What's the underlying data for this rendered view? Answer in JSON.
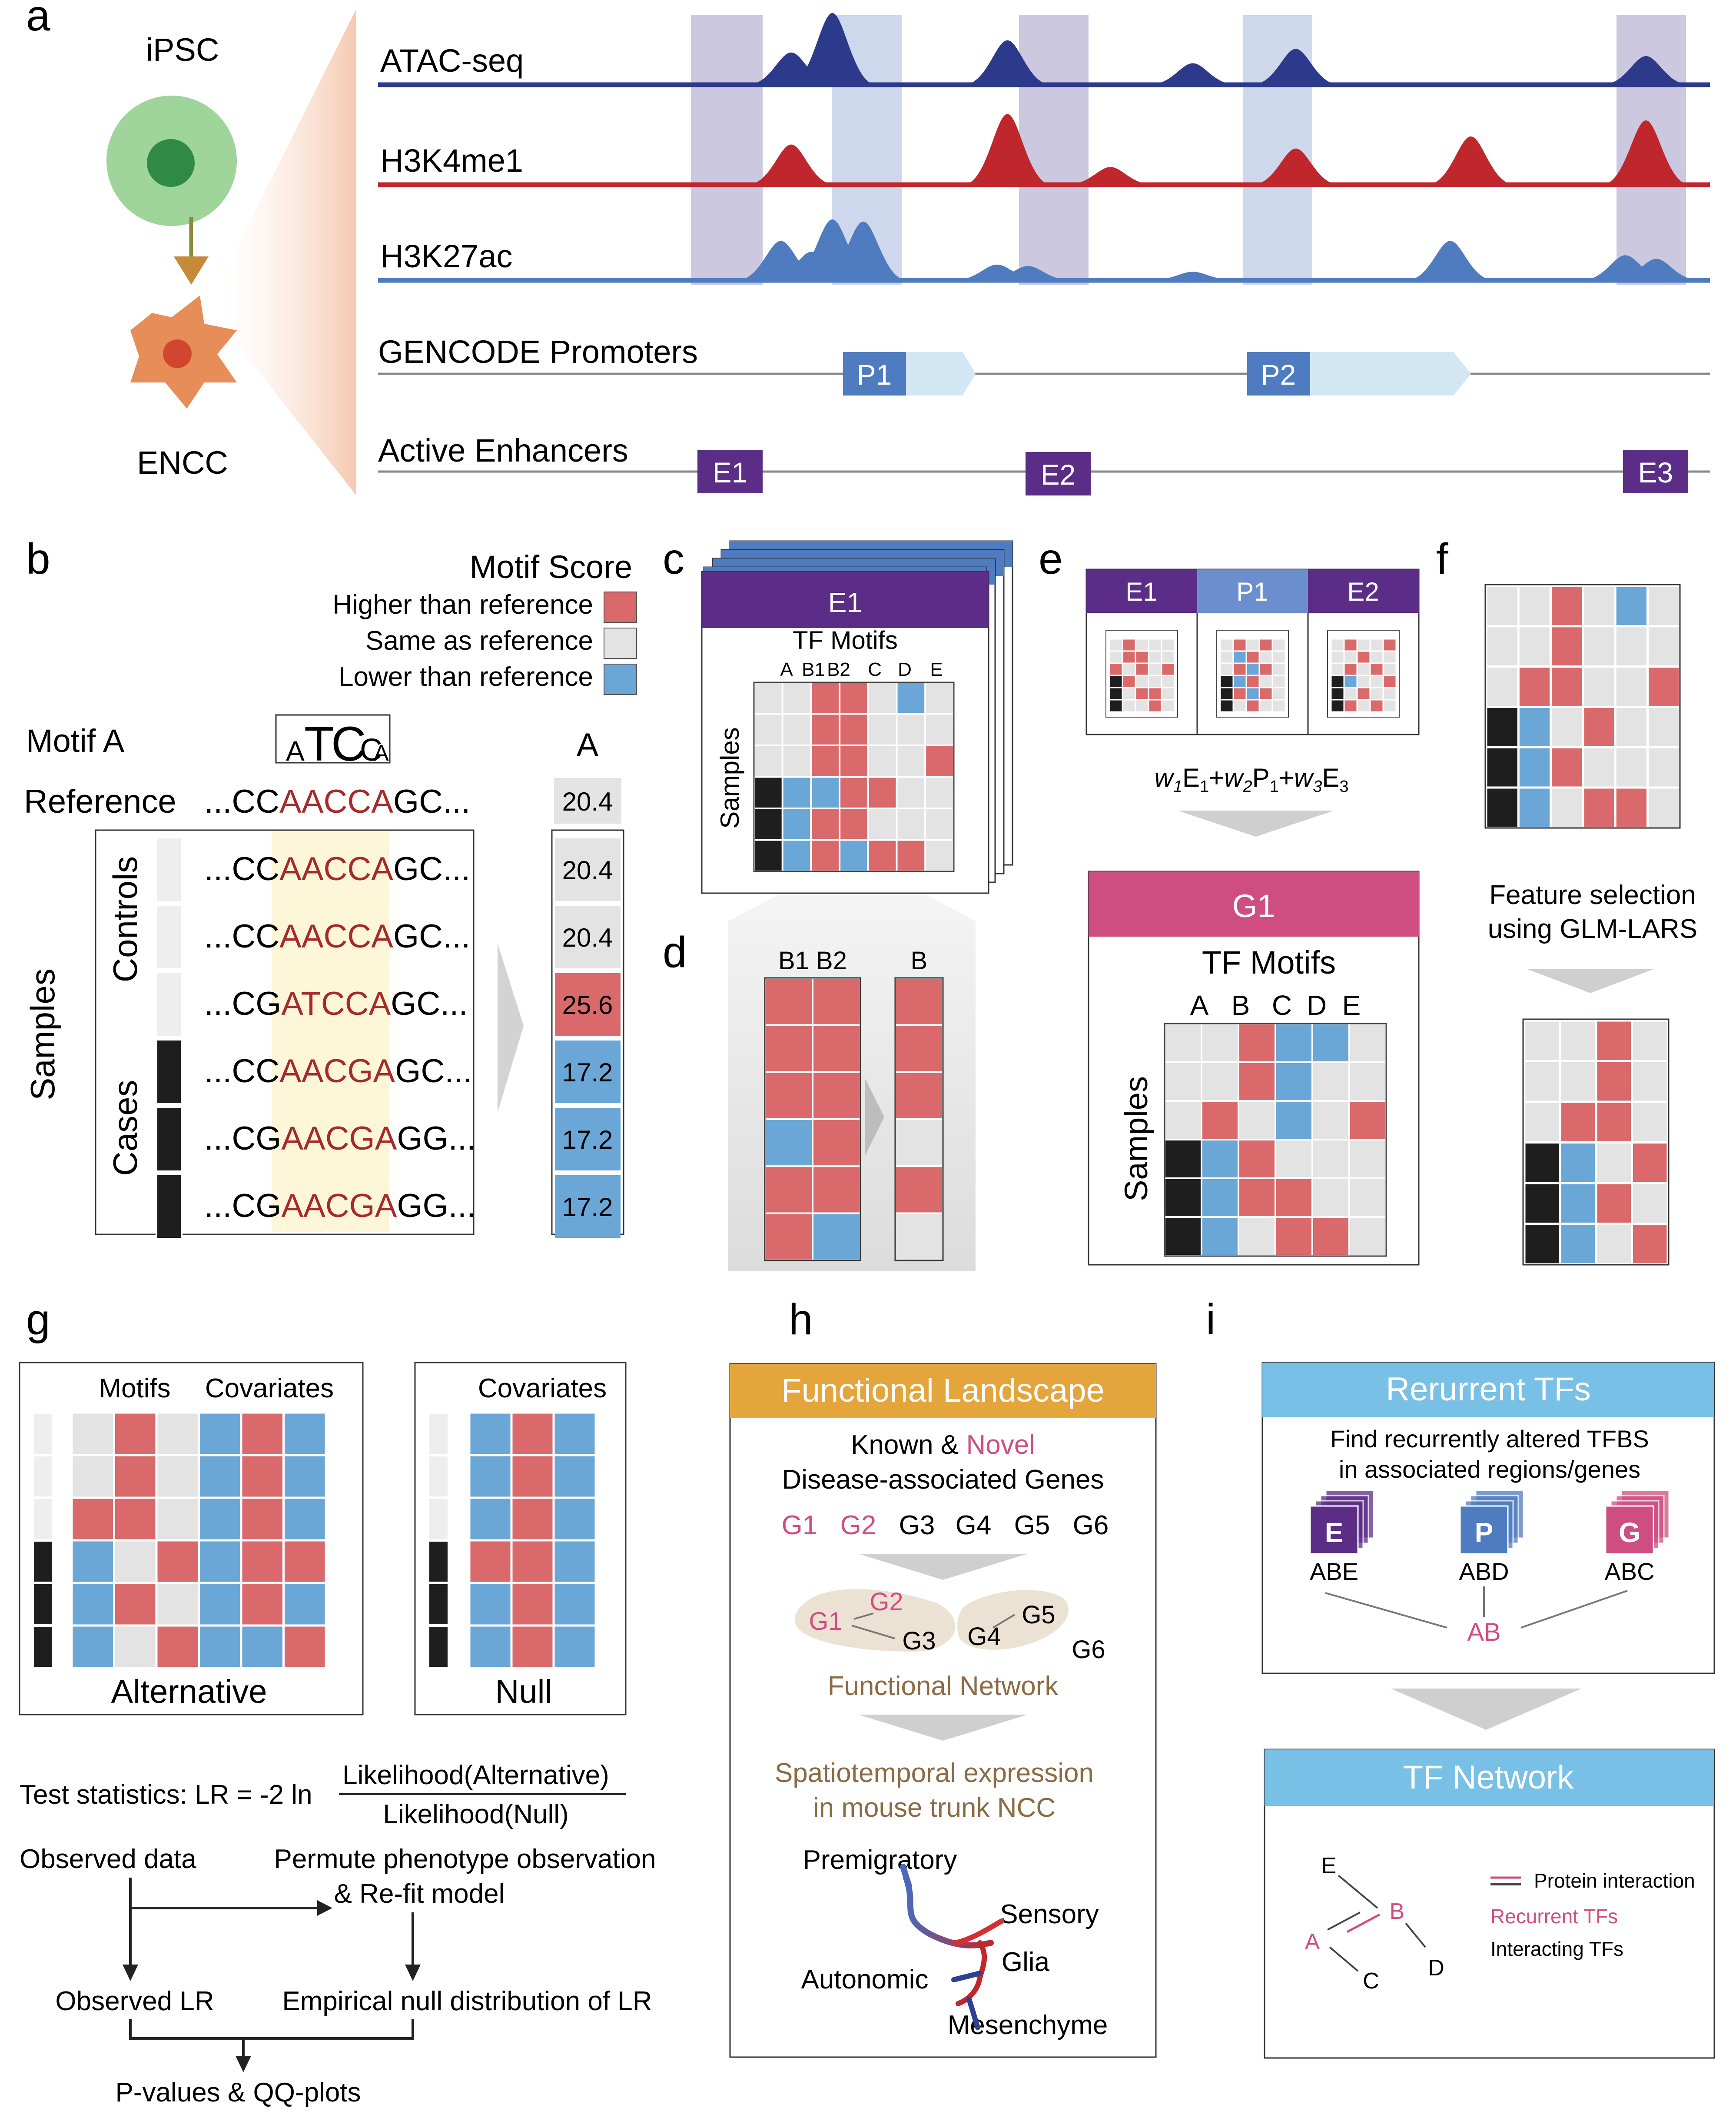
{
  "colors": {
    "red": "#d9696b",
    "blue": "#6aa6d6",
    "gray": "#e3e3e3",
    "purple": "#5b2d86",
    "steel": "#4f7cc0",
    "pink": "#cf4e82",
    "orange": "#e3a53c",
    "sky": "#79c0e6",
    "navy": "#2d3a8c",
    "crimson": "#c0272d",
    "brown": "#8c6a44"
  },
  "panel_letters": [
    "a",
    "b",
    "c",
    "d",
    "e",
    "f",
    "g",
    "h",
    "i"
  ],
  "a": {
    "cell_top": "iPSC",
    "cell_bottom": "ENCC",
    "tracks": [
      {
        "label": "ATAC-seq",
        "color": "#2d3a8c",
        "peaks": [
          [
            0.11,
            0.45
          ],
          [
            0.15,
            1.0
          ],
          [
            0.32,
            0.62
          ],
          [
            0.5,
            0.3
          ],
          [
            0.6,
            0.5
          ],
          [
            0.94,
            0.4
          ]
        ]
      },
      {
        "label": "H3K4me1",
        "color": "#c0272d",
        "peaks": [
          [
            0.11,
            0.5
          ],
          [
            0.32,
            0.88
          ],
          [
            0.42,
            0.22
          ],
          [
            0.6,
            0.45
          ],
          [
            0.77,
            0.6
          ],
          [
            0.94,
            0.8
          ]
        ]
      },
      {
        "label": "H3K27ac",
        "color": "#4f7cc0",
        "peaks": [
          [
            0.1,
            0.55
          ],
          [
            0.13,
            0.4
          ],
          [
            0.15,
            0.85
          ],
          [
            0.18,
            0.82
          ],
          [
            0.31,
            0.22
          ],
          [
            0.34,
            0.2
          ],
          [
            0.5,
            0.12
          ],
          [
            0.75,
            0.55
          ],
          [
            0.92,
            0.35
          ],
          [
            0.95,
            0.3
          ]
        ]
      }
    ],
    "promoters_label": "GENCODE Promoters",
    "promoters": [
      "P1",
      "P2"
    ],
    "enhancers_label": "Active Enhancers",
    "enhancers": [
      "E1",
      "E2",
      "E3"
    ]
  },
  "b": {
    "legend_title": "Motif Score",
    "legend": [
      "Higher than reference",
      "Same as reference",
      "Lower than reference"
    ],
    "motif_name": "Motif A",
    "motif_logo": [
      "A",
      "T",
      "C",
      "C",
      "A"
    ],
    "reference_label": "Reference",
    "reference_seq": {
      "pre": "...CC",
      "motif": "AACCA",
      "post": "GC..."
    },
    "column_header": "A",
    "reference_score": "20.4",
    "samples_label": "Samples",
    "controls_label": "Controls",
    "cases_label": "Cases",
    "rows": [
      {
        "pre": "...CC",
        "motif": "AACCA",
        "post": "GC...",
        "score": "20.4",
        "state": "gray"
      },
      {
        "pre": "...CC",
        "motif": "AACCA",
        "post": "GC...",
        "score": "20.4",
        "state": "gray"
      },
      {
        "pre": "...CG",
        "motif": "ATCCA",
        "post": "GC...",
        "score": "25.6",
        "state": "red"
      },
      {
        "pre": "...CC",
        "motif": "AACGA",
        "post": "GC...",
        "score": "17.2",
        "state": "blue"
      },
      {
        "pre": "...CG",
        "motif": "AACGA",
        "post": "GG...",
        "score": "17.2",
        "state": "blue"
      },
      {
        "pre": "...CG",
        "motif": "AACGA",
        "post": "GG...",
        "score": "17.2",
        "state": "blue"
      }
    ]
  },
  "c": {
    "header": "E1",
    "subtitle": "TF Motifs",
    "columns": [
      "A",
      "B1",
      "B2",
      "C",
      "D",
      "E"
    ],
    "samples_label": "Samples",
    "grid": [
      [
        "g",
        "g",
        "r",
        "r",
        "g",
        "b",
        "g"
      ],
      [
        "g",
        "g",
        "r",
        "r",
        "g",
        "g",
        "g"
      ],
      [
        "g",
        "g",
        "r",
        "r",
        "g",
        "g",
        "r"
      ],
      [
        "k",
        "b",
        "b",
        "r",
        "r",
        "g",
        "g"
      ],
      [
        "k",
        "b",
        "r",
        "r",
        "g",
        "g",
        "g"
      ],
      [
        "k",
        "b",
        "r",
        "b",
        "r",
        "r",
        "g"
      ]
    ]
  },
  "d": {
    "left_header": "B1 B2",
    "right_header": "B",
    "left": [
      [
        "r",
        "r"
      ],
      [
        "r",
        "r"
      ],
      [
        "r",
        "r"
      ],
      [
        "b",
        "r"
      ],
      [
        "r",
        "r"
      ],
      [
        "r",
        "b"
      ]
    ],
    "right": [
      "r",
      "r",
      "r",
      "g",
      "r",
      "g"
    ]
  },
  "e": {
    "headers": [
      "E1",
      "P1",
      "E2"
    ],
    "equation": {
      "w1": "w",
      "s1": "1",
      "E1": "E",
      "e1": "1",
      "plus1": "+",
      "w2": "w",
      "s2": "2",
      "P1": "P",
      "p1": "1",
      "plus2": "+",
      "w3": "w",
      "s3": "3",
      "E3": "E",
      "e3": "3"
    },
    "result_header": "G1",
    "result_subtitle": "TF Motifs",
    "columns": [
      "A",
      "B",
      "C",
      "D",
      "E"
    ],
    "samples_label": "Samples",
    "grid": [
      [
        "g",
        "g",
        "r",
        "b",
        "b",
        "g"
      ],
      [
        "g",
        "g",
        "r",
        "b",
        "g",
        "g"
      ],
      [
        "g",
        "r",
        "g",
        "b",
        "g",
        "r"
      ],
      [
        "k",
        "b",
        "r",
        "g",
        "g",
        "g"
      ],
      [
        "k",
        "b",
        "r",
        "r",
        "g",
        "g"
      ],
      [
        "k",
        "b",
        "g",
        "r",
        "r",
        "g"
      ]
    ]
  },
  "f": {
    "top_grid": [
      [
        "g",
        "g",
        "r",
        "g",
        "b",
        "g"
      ],
      [
        "g",
        "g",
        "r",
        "g",
        "g",
        "g"
      ],
      [
        "g",
        "r",
        "r",
        "g",
        "g",
        "r"
      ],
      [
        "k",
        "b",
        "g",
        "r",
        "g",
        "g"
      ],
      [
        "k",
        "b",
        "r",
        "g",
        "g",
        "g"
      ],
      [
        "k",
        "b",
        "g",
        "r",
        "r",
        "g"
      ]
    ],
    "caption": [
      "Feature selection",
      "using GLM-LARS"
    ],
    "bottom_grid": [
      [
        "g",
        "g",
        "r",
        "g"
      ],
      [
        "g",
        "g",
        "r",
        "g"
      ],
      [
        "g",
        "r",
        "r",
        "g"
      ],
      [
        "k",
        "b",
        "g",
        "r"
      ],
      [
        "k",
        "b",
        "r",
        "g"
      ],
      [
        "k",
        "b",
        "g",
        "r"
      ]
    ]
  },
  "g": {
    "motifs_label": "Motifs",
    "covariates_label": "Covariates",
    "alt_grid": [
      [
        "g",
        "r",
        "g",
        "b",
        "r",
        "b"
      ],
      [
        "g",
        "r",
        "g",
        "b",
        "r",
        "b"
      ],
      [
        "r",
        "r",
        "g",
        "b",
        "r",
        "b"
      ],
      [
        "b",
        "g",
        "r",
        "b",
        "r",
        "r"
      ],
      [
        "b",
        "r",
        "g",
        "b",
        "r",
        "b"
      ],
      [
        "b",
        "g",
        "r",
        "b",
        "b",
        "r"
      ]
    ],
    "null_grid": [
      [
        "b",
        "r",
        "b"
      ],
      [
        "b",
        "r",
        "b"
      ],
      [
        "b",
        "r",
        "b"
      ],
      [
        "r",
        "r",
        "b"
      ],
      [
        "b",
        "r",
        "b"
      ],
      [
        "b",
        "r",
        "b"
      ]
    ],
    "alt_label": "Alternative",
    "null_label": "Null",
    "test_stat_prefix": "Test statistics: LR = -2 ln",
    "numerator": "Likelihood(Alternative)",
    "denominator": "Likelihood(Null)",
    "observed_data": "Observed data",
    "permute_line1": "Permute phenotype observation",
    "permute_line2": "& Re-fit model",
    "observed_lr": "Observed LR",
    "empirical_null": "Empirical null distribution of LR",
    "pvalues": "P-values & QQ-plots"
  },
  "h": {
    "header": "Functional Landscape",
    "known": "Known &",
    "novel": "Novel",
    "disease_genes": "Disease-associated Genes",
    "genes": [
      {
        "name": "G1",
        "novel": true
      },
      {
        "name": "G2",
        "novel": true
      },
      {
        "name": "G3",
        "novel": false
      },
      {
        "name": "G4",
        "novel": false
      },
      {
        "name": "G5",
        "novel": false
      },
      {
        "name": "G6",
        "novel": false
      }
    ],
    "functional_network": "Functional Network",
    "spatio_line1": "Spatiotemporal expression",
    "spatio_line2": "in mouse trunk NCC",
    "premigratory": "Premigratory",
    "sensory": "Sensory",
    "glia": "Glia",
    "autonomic": "Autonomic",
    "mesenchyme": "Mesenchyme"
  },
  "i": {
    "header1": "Rerurrent TFs",
    "find_line1": "Find recurrently altered TFBS",
    "find_line2": "in associated regions/genes",
    "regions": [
      {
        "letter": "E",
        "tfs": "ABE",
        "color": "#5b2d86"
      },
      {
        "letter": "P",
        "tfs": "ABD",
        "color": "#4f7cc0"
      },
      {
        "letter": "G",
        "tfs": "ABC",
        "color": "#cf4e82"
      }
    ],
    "common": "AB",
    "header2": "TF Network",
    "nodes": [
      {
        "name": "E",
        "recurrent": false
      },
      {
        "name": "B",
        "recurrent": true
      },
      {
        "name": "A",
        "recurrent": true
      },
      {
        "name": "C",
        "recurrent": false
      },
      {
        "name": "D",
        "recurrent": false
      }
    ],
    "legend_protein": "Protein interaction",
    "legend_recurrent": "Recurrent TFs",
    "legend_interacting": "Interacting TFs"
  }
}
